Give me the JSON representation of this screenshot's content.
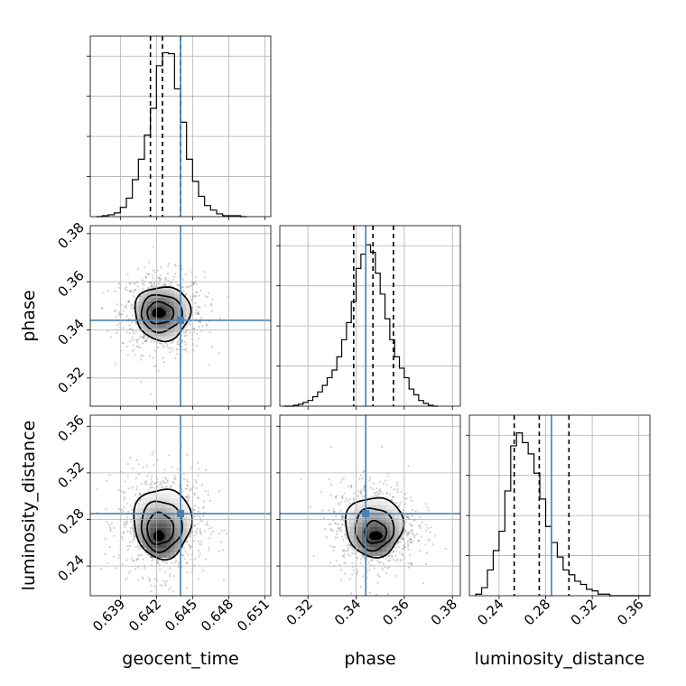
{
  "chart_data": {
    "type": "corner",
    "title": "",
    "parameters": [
      "geocent_time",
      "phase",
      "luminosity_distance"
    ],
    "truth_color": "#4682b4",
    "grid": true,
    "ranges": {
      "geocent_time": [
        0.6365,
        0.6515
      ],
      "phase": [
        0.3083,
        0.3833
      ],
      "luminosity_distance": [
        0.2145,
        0.3695
      ]
    },
    "ticks": {
      "geocent_time": [
        "0.639",
        "0.642",
        "0.645",
        "0.648",
        "0.651"
      ],
      "phase": [
        "0.32",
        "0.34",
        "0.36",
        "0.38"
      ],
      "luminosity_distance": [
        "0.24",
        "0.28",
        "0.32",
        "0.36"
      ]
    },
    "truths": {
      "geocent_time": 0.644,
      "phase": 0.344,
      "luminosity_distance": 0.285
    },
    "quantiles": {
      "geocent_time": [
        0.6415,
        0.6425,
        0.644
      ],
      "phase": [
        0.339,
        0.347,
        0.3555
      ],
      "luminosity_distance": [
        0.253,
        0.2745,
        0.3
      ]
    },
    "histograms": {
      "geocent_time": {
        "bin_edges": [
          0.637,
          0.6375,
          0.638,
          0.6385,
          0.639,
          0.6395,
          0.64,
          0.6405,
          0.641,
          0.6415,
          0.642,
          0.6425,
          0.643,
          0.6435,
          0.644,
          0.6445,
          0.645,
          0.6455,
          0.646,
          0.6465,
          0.647,
          0.6475,
          0.648,
          0.6485,
          0.649,
          0.6495
        ],
        "counts": [
          0,
          1,
          2,
          4,
          10,
          20,
          40,
          62,
          88,
          117,
          163,
          177,
          176,
          138,
          102,
          62,
          38,
          22,
          12,
          7,
          3,
          1,
          1,
          1,
          0
        ],
        "y_max": 195
      },
      "phase": {
        "bin_edges": [
          0.31,
          0.312,
          0.314,
          0.316,
          0.318,
          0.32,
          0.322,
          0.324,
          0.326,
          0.328,
          0.33,
          0.332,
          0.334,
          0.336,
          0.338,
          0.34,
          0.342,
          0.344,
          0.346,
          0.348,
          0.35,
          0.352,
          0.354,
          0.356,
          0.358,
          0.36,
          0.362,
          0.364,
          0.366,
          0.368,
          0.37,
          0.372,
          0.374
        ],
        "counts": [
          0,
          0,
          1,
          2,
          4,
          6,
          10,
          15,
          22,
          30,
          38,
          52,
          70,
          88,
          110,
          145,
          160,
          170,
          162,
          140,
          118,
          92,
          70,
          52,
          40,
          30,
          18,
          12,
          6,
          3,
          1,
          0
        ],
        "y_max": 190
      },
      "luminosity_distance": {
        "bin_edges": [
          0.22,
          0.225,
          0.23,
          0.235,
          0.24,
          0.245,
          0.25,
          0.255,
          0.26,
          0.265,
          0.27,
          0.275,
          0.28,
          0.285,
          0.29,
          0.295,
          0.3,
          0.305,
          0.31,
          0.315,
          0.32,
          0.325,
          0.33,
          0.335,
          0.34,
          0.345,
          0.35,
          0.355,
          0.36,
          0.365,
          0.37
        ],
        "counts": [
          1,
          5,
          16,
          28,
          40,
          65,
          93,
          101,
          95,
          88,
          76,
          60,
          43,
          33,
          24,
          16,
          13,
          9,
          7,
          4,
          3,
          1,
          1,
          0,
          0,
          0,
          0,
          0,
          0,
          0
        ],
        "y_max": 112
      }
    },
    "pairs": [
      {
        "x": "geocent_time",
        "y": "phase",
        "peak": [
          0.6423,
          0.347
        ],
        "contours": [
          {
            "cx": 0.6425,
            "cy": 0.347,
            "rx": 0.0023,
            "ry": 0.0112
          },
          {
            "cx": 0.6424,
            "cy": 0.347,
            "rx": 0.0017,
            "ry": 0.0077
          },
          {
            "cx": 0.6423,
            "cy": 0.347,
            "rx": 0.0011,
            "ry": 0.0045
          },
          {
            "cx": 0.6422,
            "cy": 0.3471,
            "rx": 0.0005,
            "ry": 0.0018
          }
        ]
      },
      {
        "x": "geocent_time",
        "y": "luminosity_distance",
        "peak": [
          0.6423,
          0.265
        ],
        "contours": [
          {
            "cx": 0.6425,
            "cy": 0.277,
            "rx": 0.0024,
            "ry": 0.03
          },
          {
            "cx": 0.6424,
            "cy": 0.2745,
            "rx": 0.0017,
            "ry": 0.0215
          },
          {
            "cx": 0.6423,
            "cy": 0.272,
            "rx": 0.0011,
            "ry": 0.0135
          },
          {
            "cx": 0.6422,
            "cy": 0.266,
            "rx": 0.0004,
            "ry": 0.004
          }
        ]
      },
      {
        "x": "phase",
        "y": "luminosity_distance",
        "peak": [
          0.348,
          0.265
        ],
        "contours": [
          {
            "cx": 0.3475,
            "cy": 0.274,
            "rx": 0.012,
            "ry": 0.0255
          },
          {
            "cx": 0.3475,
            "cy": 0.272,
            "rx": 0.008,
            "ry": 0.018
          },
          {
            "cx": 0.348,
            "cy": 0.269,
            "rx": 0.0045,
            "ry": 0.0095
          },
          {
            "cx": 0.3482,
            "cy": 0.266,
            "rx": 0.0025,
            "ry": 0.003
          }
        ]
      }
    ]
  }
}
